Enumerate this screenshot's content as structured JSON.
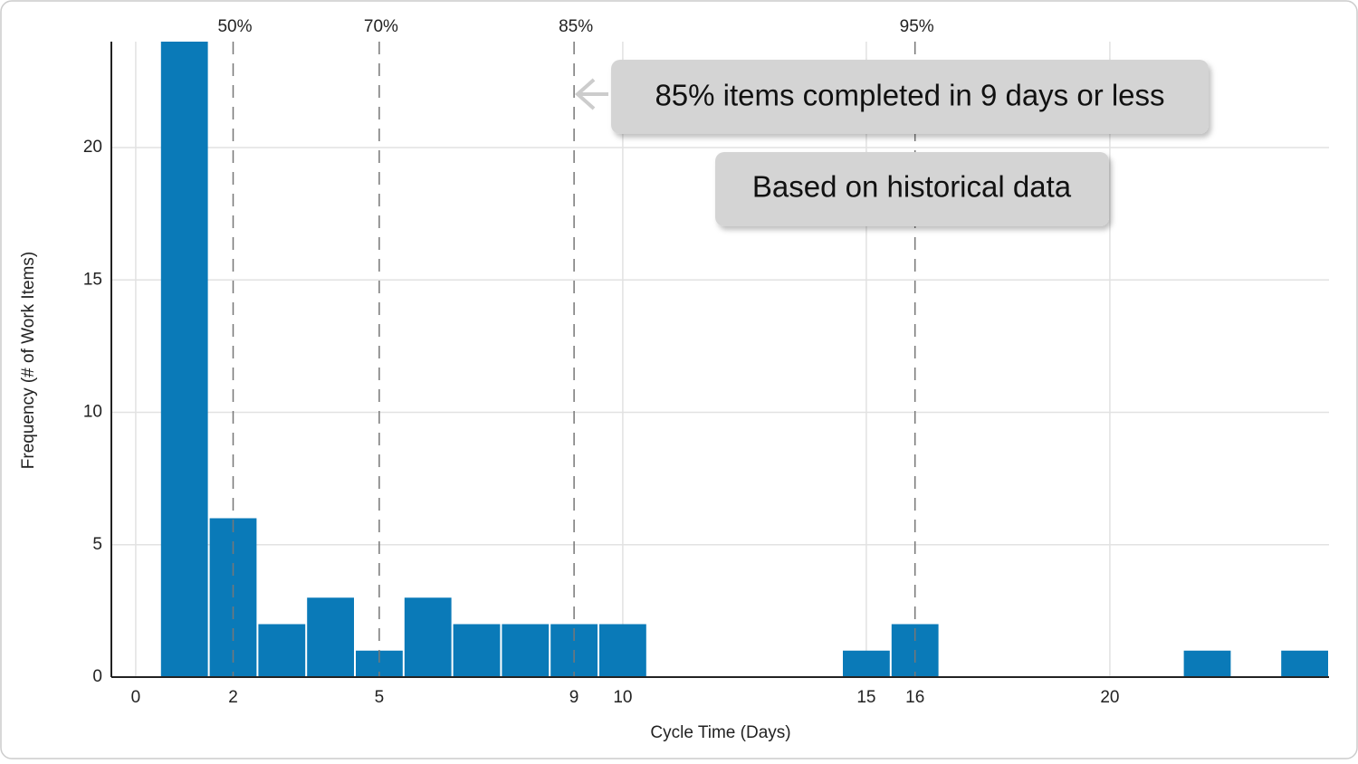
{
  "chart_data": {
    "type": "histogram",
    "x_label": "Cycle Time (Days)",
    "y_label": "Frequency (# of Work Items)",
    "bins": [
      0.5,
      1.5,
      2.5,
      3.5,
      4.5,
      5.5,
      6.5,
      7.5,
      8.5,
      9.5,
      10.5,
      11.5,
      12.5,
      13.5,
      14.5,
      15.5,
      16.5,
      17.5,
      18.5,
      19.5,
      20.5,
      21.5,
      22.5,
      23.5,
      24.5
    ],
    "values": [
      24,
      6,
      2,
      3,
      1,
      3,
      2,
      2,
      2,
      2,
      0,
      0,
      0,
      0,
      1,
      2,
      0,
      0,
      0,
      0,
      0,
      1,
      0,
      1
    ],
    "color": "#0a7ab8",
    "xlim": [
      -0.5,
      24.5
    ],
    "ylim": [
      0,
      24
    ],
    "xticks": [
      0,
      2,
      5,
      9,
      10,
      15,
      16,
      20
    ],
    "yticks": [
      0,
      5,
      10,
      15,
      20
    ],
    "grid": true,
    "percentiles": [
      {
        "value": 2,
        "label": "50%"
      },
      {
        "value": 5,
        "label": "70%"
      },
      {
        "value": 9,
        "label": "85%"
      },
      {
        "value": 16,
        "label": "95%"
      }
    ],
    "annotations": [
      "85% items completed in 9 days or less",
      "Based on historical data"
    ]
  }
}
